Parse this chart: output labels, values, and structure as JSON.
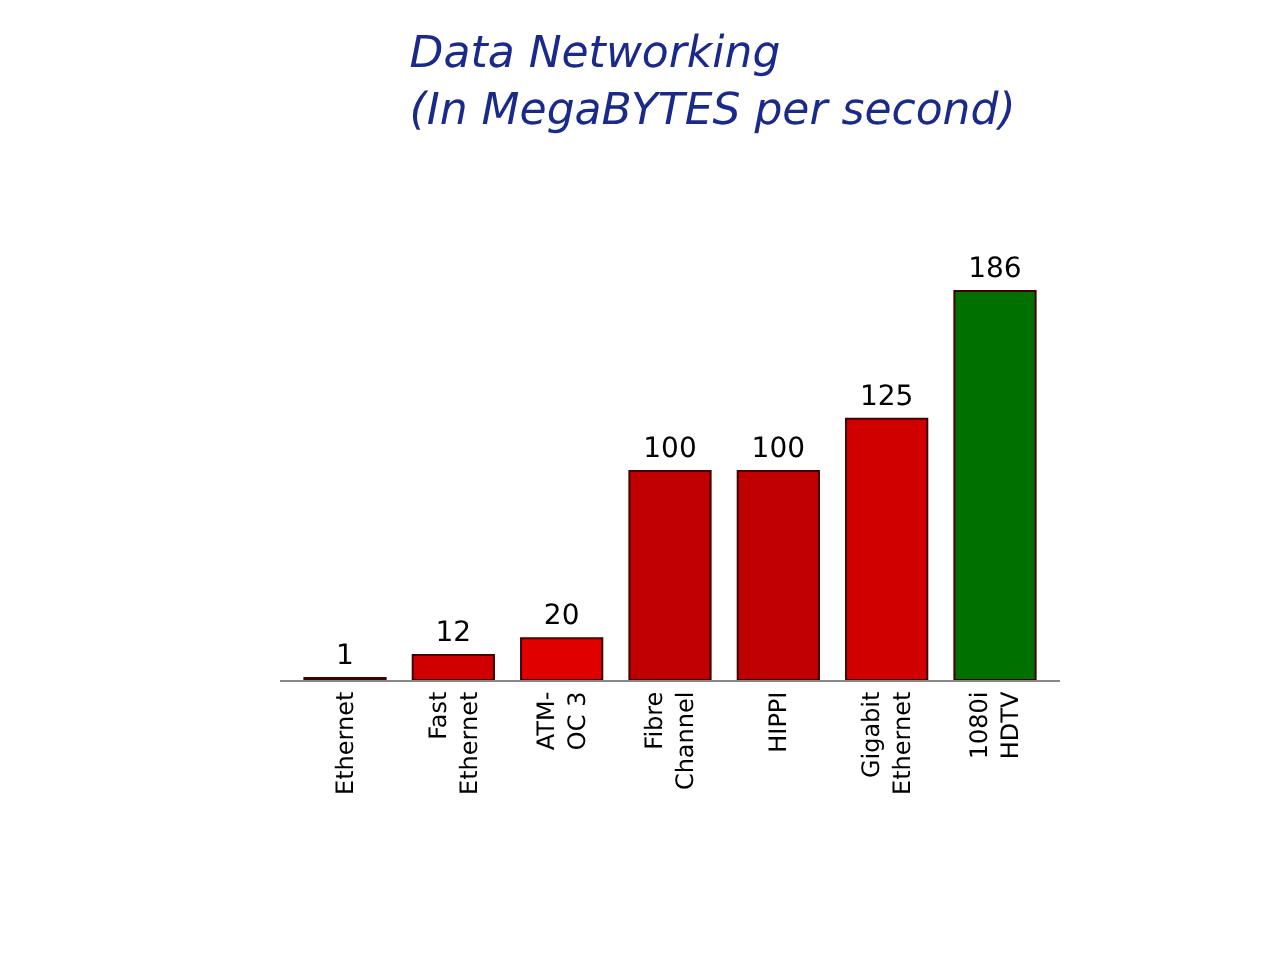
{
  "chart_data": {
    "type": "bar",
    "title": "Data Networking",
    "subtitle": "(In MegaBYTES per second)",
    "categories": [
      "Ethernet",
      "Fast\nEthernet",
      "ATM-\nOC 3",
      "Fibre\nChannel",
      "HIPPI",
      "Gigabit\nEthernet",
      "1080i\nHDTV"
    ],
    "values": [
      1,
      12,
      20,
      100,
      100,
      125,
      186
    ],
    "colors": [
      "#c00000",
      "#d00000",
      "#e00000",
      "#c00000",
      "#c00000",
      "#d00000",
      "#007000"
    ],
    "data_labels": true,
    "legend": false
  }
}
